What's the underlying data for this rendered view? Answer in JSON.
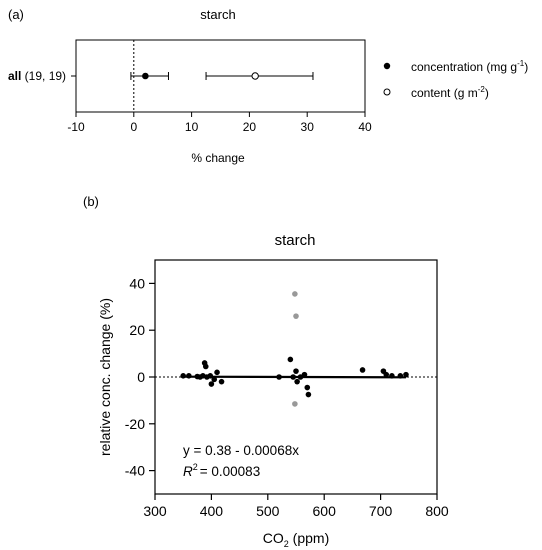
{
  "panel_a": {
    "label": "(a)",
    "title": "starch",
    "row_label_bold": "all",
    "row_label_n": " (19, 19)",
    "xlabel": "% change",
    "legend": {
      "concentration": "concentration (mg g",
      "concentration_sup": "-1",
      "concentration_close": ")",
      "content": "content (g m",
      "content_sup": "-2",
      "content_close": ")"
    }
  },
  "panel_b": {
    "label": "(b)",
    "title": "starch",
    "ylabel": "relative conc. change (%)",
    "xlabel_main": "CO",
    "xlabel_sub": "2",
    "xlabel_units": " (ppm)",
    "equation": "y = 0.38 - 0.00068x",
    "r2_label": "R",
    "r2_sup": "2",
    "r2_value": "= 0.00083"
  },
  "chart_data": [
    {
      "type": "forest",
      "title": "starch",
      "xlabel": "% change",
      "xlim": [
        -10,
        40
      ],
      "xticks": [
        -10,
        0,
        10,
        20,
        30,
        40
      ],
      "reference_line": 0,
      "rows": [
        "all (19, 19)"
      ],
      "series": [
        {
          "name": "concentration (mg g-1)",
          "marker": "filled",
          "mean": 2,
          "ci": [
            -0.5,
            6
          ]
        },
        {
          "name": "content (g m-2)",
          "marker": "open",
          "mean": 21,
          "ci": [
            12.5,
            31
          ]
        }
      ],
      "legend_position": "right"
    },
    {
      "type": "scatter",
      "title": "starch",
      "xlabel": "CO2 (ppm)",
      "ylabel": "relative conc. change (%)",
      "xlim": [
        300,
        800
      ],
      "ylim": [
        -50,
        50
      ],
      "xticks": [
        300,
        400,
        500,
        600,
        700,
        800
      ],
      "yticks": [
        -40,
        -20,
        0,
        20,
        40
      ],
      "reference_line": 0,
      "series": [
        {
          "color": "#000000",
          "points": [
            [
              350,
              0.5
            ],
            [
              360,
              0.5
            ],
            [
              375,
              0.2
            ],
            [
              380,
              0
            ],
            [
              385,
              0.5
            ],
            [
              388,
              6
            ],
            [
              390,
              4.5
            ],
            [
              392,
              0
            ],
            [
              398,
              0.5
            ],
            [
              400,
              -3
            ],
            [
              405,
              -1
            ],
            [
              410,
              2
            ],
            [
              418,
              -2
            ],
            [
              520,
              0
            ],
            [
              540,
              7.5
            ],
            [
              545,
              0
            ],
            [
              550,
              2.5
            ],
            [
              552,
              -2
            ],
            [
              558,
              0
            ],
            [
              565,
              1
            ],
            [
              570,
              -4.5
            ],
            [
              572,
              -7.5
            ],
            [
              668,
              3
            ],
            [
              705,
              2.5
            ],
            [
              710,
              1
            ],
            [
              720,
              0.5
            ],
            [
              735,
              0.5
            ],
            [
              745,
              1
            ]
          ]
        },
        {
          "color": "#999999",
          "points": [
            [
              548,
              35.5
            ],
            [
              550,
              26
            ],
            [
              548,
              -11.5
            ]
          ]
        }
      ],
      "regression": {
        "intercept": 0.38,
        "slope": -0.00068,
        "x_range": [
          350,
          745
        ]
      },
      "annotations": [
        "y = 0.38 - 0.00068x",
        "R2 = 0.00083"
      ]
    }
  ]
}
